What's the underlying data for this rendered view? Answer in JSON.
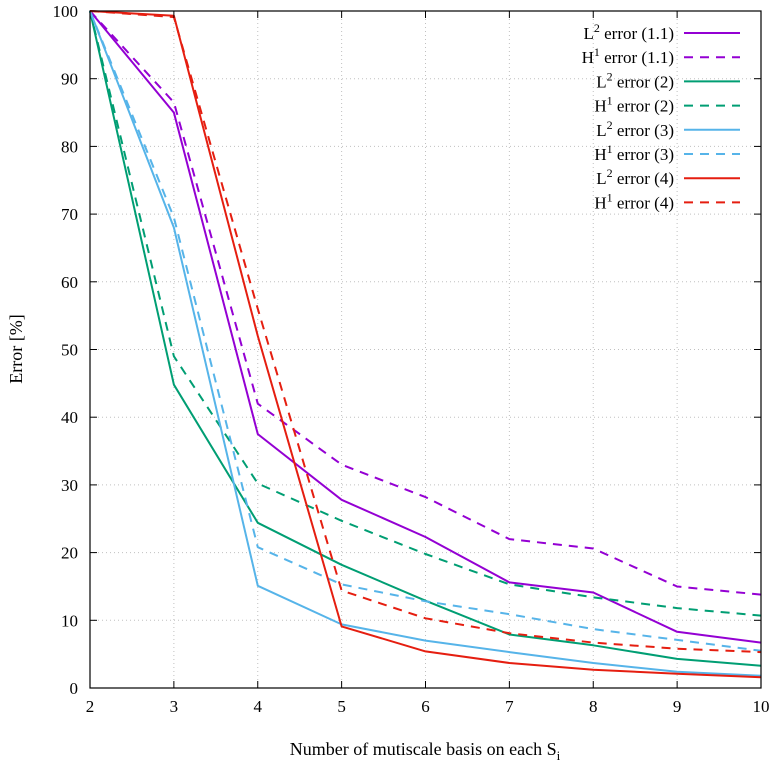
{
  "chart_data": {
    "type": "line",
    "title": "",
    "xlabel": "Number of mutiscale basis on each S",
    "xlabel_sub": "i",
    "ylabel": "Error [%]",
    "xlim": [
      2,
      10
    ],
    "ylim": [
      0,
      100
    ],
    "xticks": [
      2,
      3,
      4,
      5,
      6,
      7,
      8,
      9,
      10
    ],
    "yticks": [
      0,
      10,
      20,
      30,
      40,
      50,
      60,
      70,
      80,
      90,
      100
    ],
    "grid": true,
    "legend_position": "top-right",
    "x": [
      2,
      3,
      4,
      5,
      6,
      7,
      8,
      9,
      10
    ],
    "series": [
      {
        "name": "L2 error (1.1)",
        "norm": "L",
        "sup": "2",
        "suffix": " error (1.1)",
        "color": "#9400d3",
        "dash": "solid",
        "values": [
          100,
          85,
          37.5,
          27.8,
          22.3,
          15.6,
          14.1,
          8.3,
          6.7
        ]
      },
      {
        "name": "H1 error (1.1)",
        "norm": "H",
        "sup": "1",
        "suffix": " error (1.1)",
        "color": "#9400d3",
        "dash": "dashed",
        "values": [
          100,
          86.5,
          42,
          33,
          28.2,
          22,
          20.6,
          15,
          13.8
        ]
      },
      {
        "name": "L2 error (2)",
        "norm": "L",
        "sup": "2",
        "suffix": " error (2)",
        "color": "#009e73",
        "dash": "solid",
        "values": [
          100,
          44.8,
          24.4,
          18.2,
          12.9,
          7.9,
          6.3,
          4.3,
          3.3
        ]
      },
      {
        "name": "H1 error (2)",
        "norm": "H",
        "sup": "1",
        "suffix": " error (2)",
        "color": "#009e73",
        "dash": "dashed",
        "values": [
          100,
          49,
          30.2,
          24.7,
          19.8,
          15.3,
          13.4,
          11.8,
          10.7
        ]
      },
      {
        "name": "L2 error (3)",
        "norm": "L",
        "sup": "2",
        "suffix": " error (3)",
        "color": "#56b4e9",
        "dash": "solid",
        "values": [
          100,
          68,
          15.1,
          9.4,
          7,
          5.3,
          3.7,
          2.4,
          1.8
        ]
      },
      {
        "name": "H1 error (3)",
        "norm": "H",
        "sup": "1",
        "suffix": " error (3)",
        "color": "#56b4e9",
        "dash": "dashed",
        "values": [
          100,
          69.5,
          20.8,
          15.3,
          12.8,
          10.9,
          8.7,
          7.1,
          5.5
        ]
      },
      {
        "name": "L2 error (4)",
        "norm": "L",
        "sup": "2",
        "suffix": " error (4)",
        "color": "#e51e10",
        "dash": "solid",
        "values": [
          100,
          99.3,
          52,
          9.1,
          5.4,
          3.7,
          2.7,
          2.1,
          1.6
        ]
      },
      {
        "name": "H1 error (4)",
        "norm": "H",
        "sup": "1",
        "suffix": " error (4)",
        "color": "#e51e10",
        "dash": "dashed",
        "values": [
          100,
          99.1,
          56,
          14.4,
          10.3,
          8.1,
          6.7,
          5.8,
          5.3
        ]
      }
    ]
  }
}
